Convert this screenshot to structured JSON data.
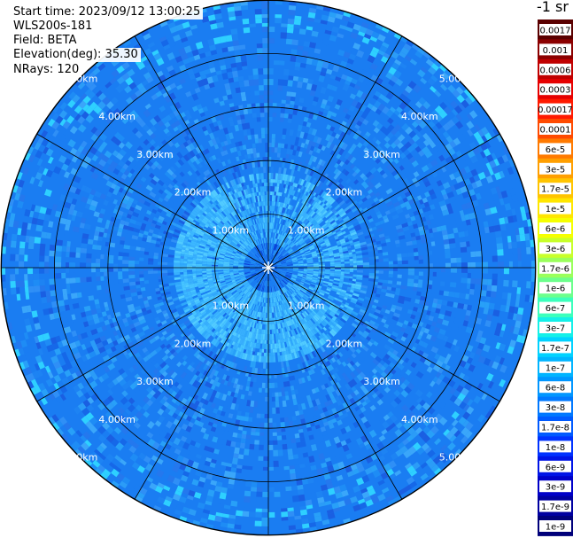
{
  "info": {
    "start_time": "Start time: 2023/09/12 13:00:25",
    "instrument": "WLS200s-181",
    "field": "Field: BETA",
    "elevation": "Elevation(deg): 35.30",
    "nrays": "NRays: 120"
  },
  "colorbar": {
    "unit": "-1 sr",
    "labels": [
      "0.0017",
      "0.001",
      "0.0006",
      "0.0003",
      "0.00017",
      "0.0001",
      "6e-5",
      "3e-5",
      "1.7e-5",
      "1e-5",
      "6e-6",
      "3e-6",
      "1.7e-6",
      "1e-6",
      "6e-7",
      "3e-7",
      "1.7e-7",
      "1e-7",
      "6e-8",
      "3e-8",
      "1.7e-8",
      "1e-8",
      "6e-9",
      "3e-9",
      "1.7e-9",
      "1e-9"
    ],
    "colors": [
      "#5a0000",
      "#8b0000",
      "#c00000",
      "#e60000",
      "#ff1a00",
      "#ff4a00",
      "#ff7a00",
      "#ff9f00",
      "#ffc400",
      "#ffe600",
      "#f5ff00",
      "#c8ff2a",
      "#9aff5c",
      "#6cff8c",
      "#3cffbc",
      "#14f0e8",
      "#00d2ff",
      "#00b4ff",
      "#0096ff",
      "#0078ff",
      "#005aff",
      "#0032ff",
      "#0014e6",
      "#0000c8",
      "#0000a0",
      "#00007a"
    ]
  },
  "chart_data": {
    "type": "polar-ppi",
    "field": "BETA",
    "units": "-1 sr",
    "range_rings_km": [
      1,
      2,
      3,
      4,
      5
    ],
    "range_labels": [
      "1.00km",
      "2.00km",
      "3.00km",
      "4.00km",
      "5.00km"
    ],
    "max_range_km": 5,
    "azimuth_spokes_deg": [
      0,
      30,
      60,
      90,
      120,
      150,
      180,
      210,
      240,
      270,
      300,
      330
    ],
    "background_level": "1e-8",
    "near_ring_level": "3e-8"
  }
}
